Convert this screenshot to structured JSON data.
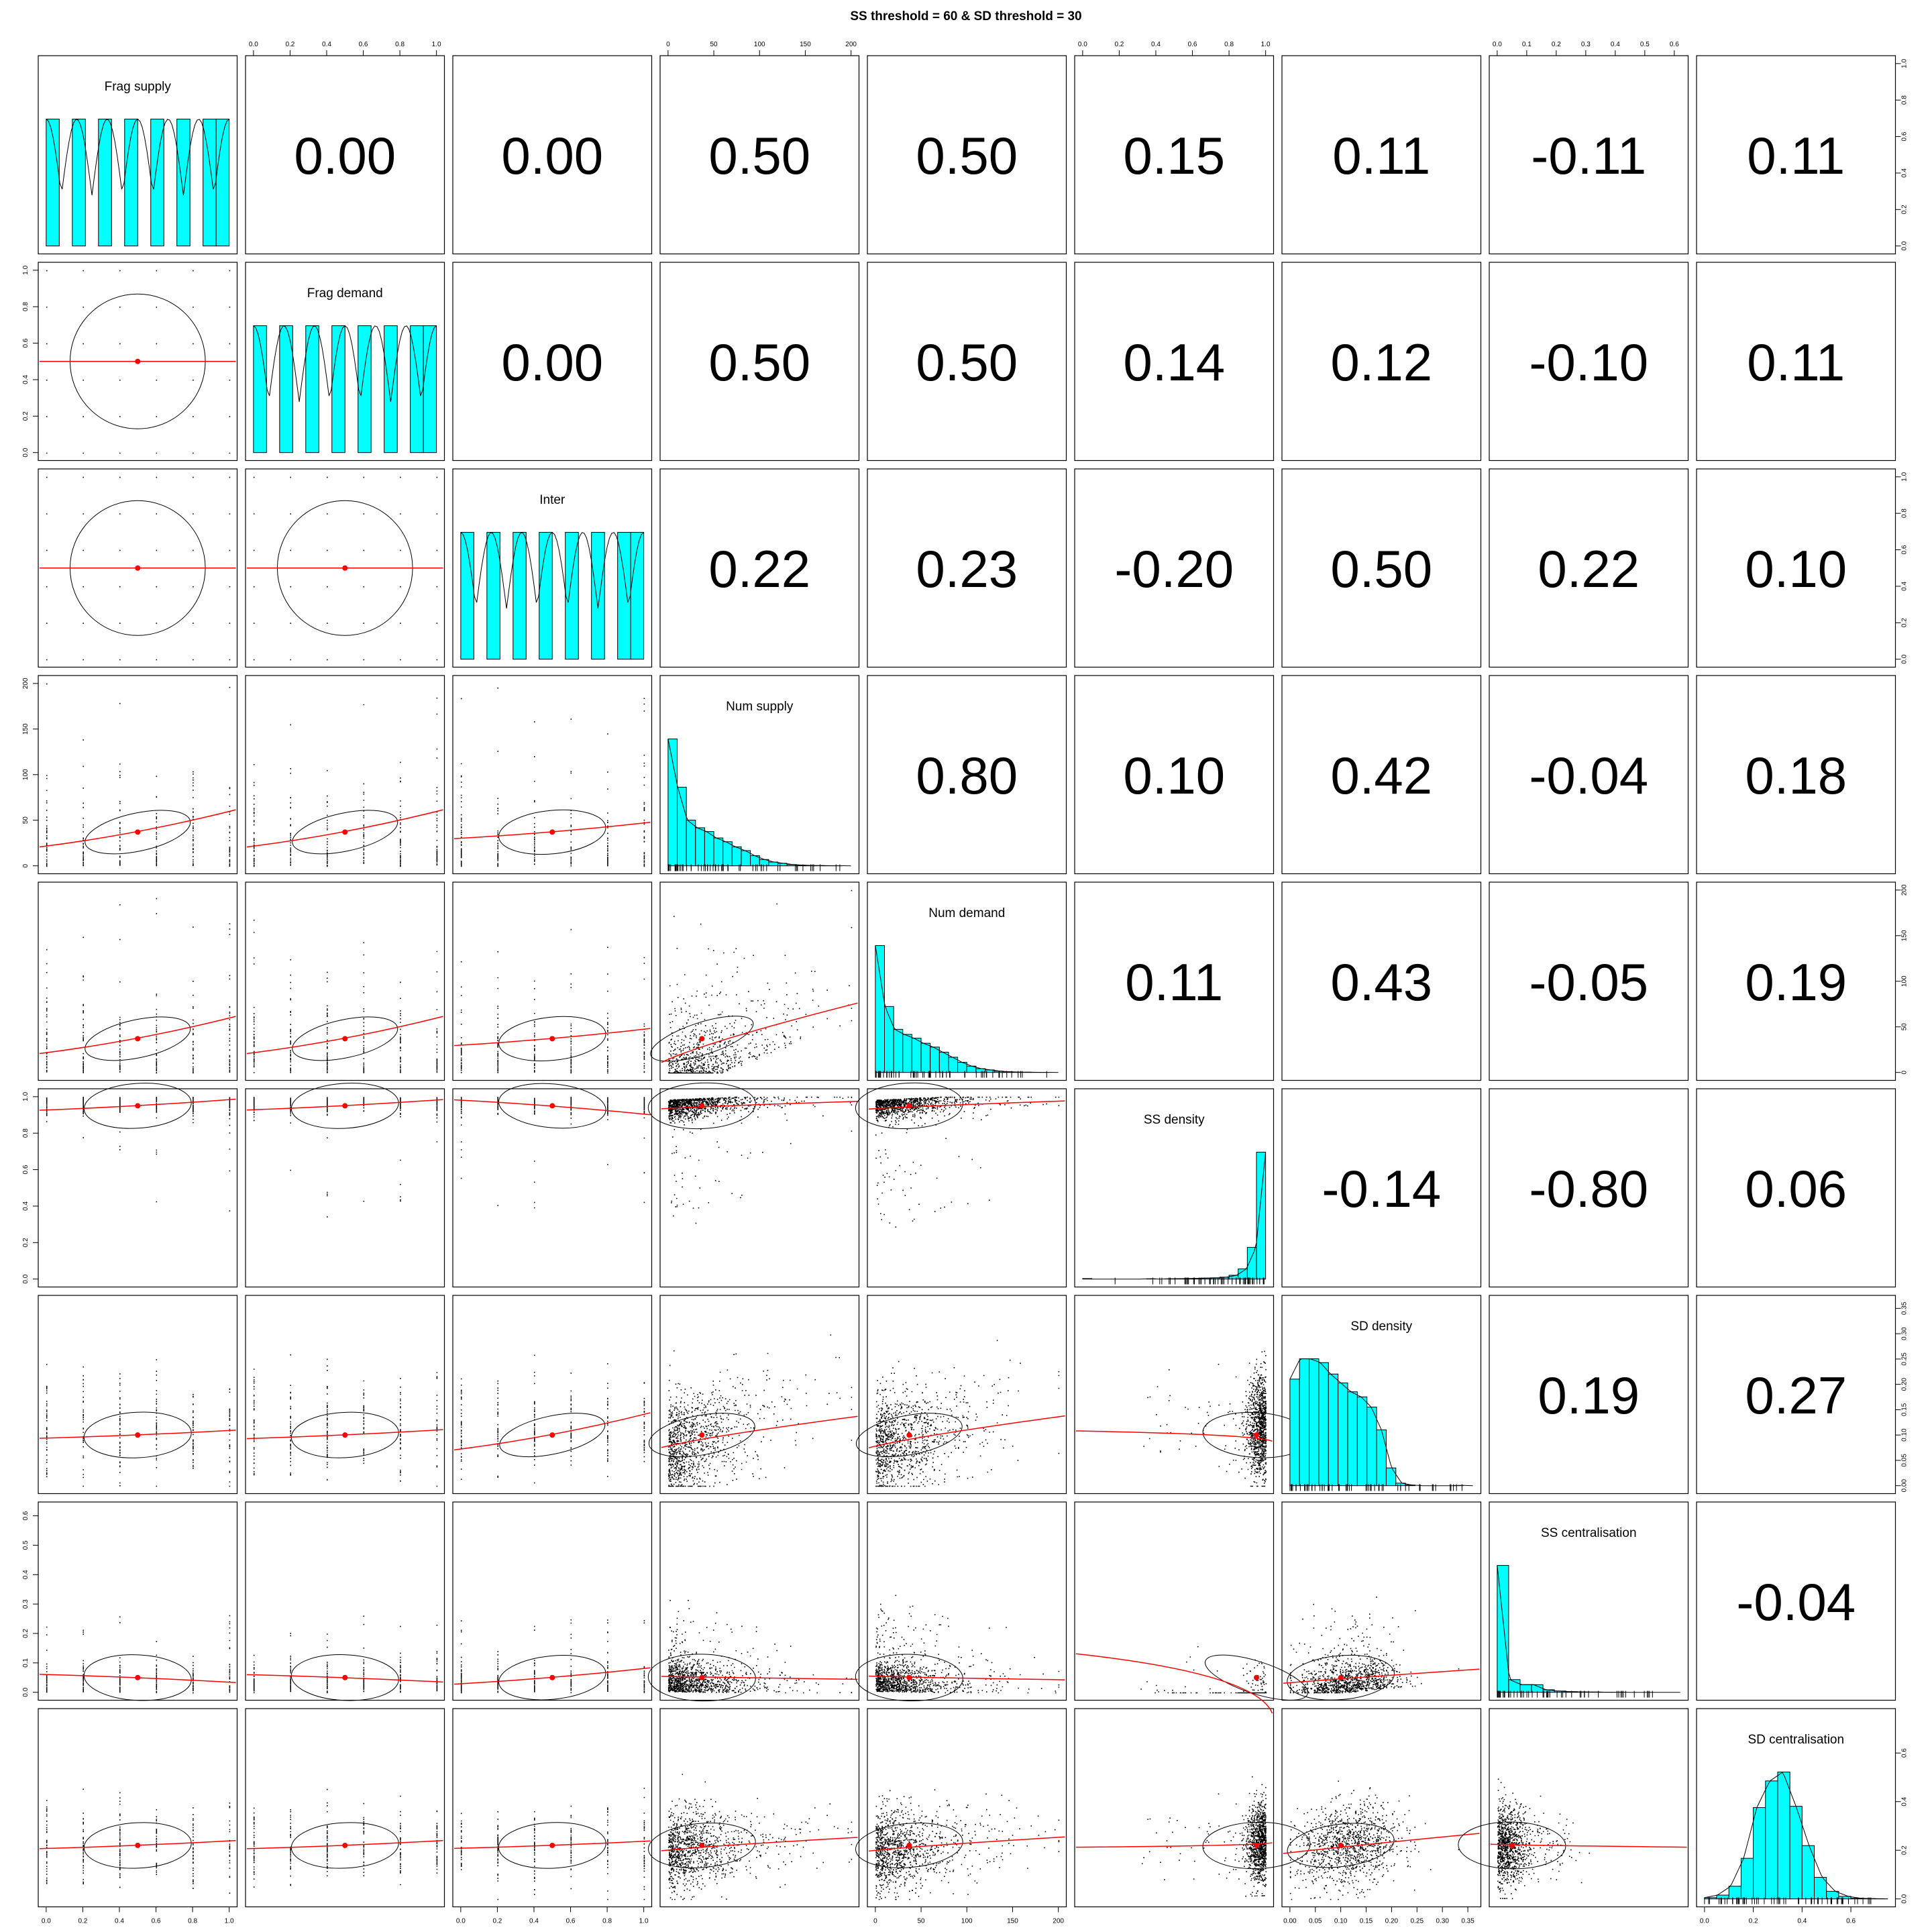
{
  "chart_data": {
    "type": "scatter-matrix",
    "title": "SS threshold = 60 & SD threshold = 30",
    "variables": [
      {
        "name": "Frag supply",
        "range": [
          0,
          1
        ],
        "ticks": [
          "0.0",
          "0.2",
          "0.4",
          "0.6",
          "0.8",
          "1.0"
        ],
        "tickvals": [
          0,
          0.2,
          0.4,
          0.6,
          0.8,
          1.0
        ],
        "mean": 0.5
      },
      {
        "name": "Frag demand",
        "range": [
          0,
          1
        ],
        "ticks": [
          "0.0",
          "0.2",
          "0.4",
          "0.6",
          "0.8",
          "1.0"
        ],
        "tickvals": [
          0,
          0.2,
          0.4,
          0.6,
          0.8,
          1.0
        ],
        "mean": 0.5
      },
      {
        "name": "Inter",
        "range": [
          0,
          1
        ],
        "ticks": [
          "0.0",
          "0.2",
          "0.4",
          "0.6",
          "0.8",
          "1.0"
        ],
        "tickvals": [
          0,
          0.2,
          0.4,
          0.6,
          0.8,
          1.0
        ],
        "mean": 0.5
      },
      {
        "name": "Num supply",
        "range": [
          0,
          200
        ],
        "ticks": [
          "0",
          "50",
          "100",
          "150",
          "200"
        ],
        "tickvals": [
          0,
          50,
          100,
          150,
          200
        ],
        "mean": 37
      },
      {
        "name": "Num demand",
        "range": [
          0,
          200
        ],
        "ticks": [
          "0",
          "50",
          "100",
          "150",
          "200"
        ],
        "tickvals": [
          0,
          50,
          100,
          150,
          200
        ],
        "mean": 37
      },
      {
        "name": "SS density",
        "range": [
          0,
          1
        ],
        "ticks": [
          "0.0",
          "0.2",
          "0.4",
          "0.6",
          "0.8",
          "1.0"
        ],
        "tickvals": [
          0,
          0.2,
          0.4,
          0.6,
          0.8,
          1.0
        ],
        "mean": 0.95
      },
      {
        "name": "SD density",
        "range": [
          0,
          0.36
        ],
        "ticks": [
          "0.00",
          "0.05",
          "0.10",
          "0.15",
          "0.20",
          "0.25",
          "0.30",
          "0.35"
        ],
        "tickvals": [
          0,
          0.05,
          0.1,
          0.15,
          0.2,
          0.25,
          0.3,
          0.35
        ],
        "mean": 0.1
      },
      {
        "name": "SS centralisation",
        "range": [
          0,
          0.62
        ],
        "ticks": [
          "0.0",
          "0.1",
          "0.2",
          "0.3",
          "0.4",
          "0.5",
          "0.6"
        ],
        "tickvals": [
          0,
          0.1,
          0.2,
          0.3,
          0.4,
          0.5,
          0.6
        ],
        "mean": 0.05
      },
      {
        "name": "SD centralisation",
        "range": [
          0,
          0.75
        ],
        "ticks": [
          "0.0",
          "0.2",
          "0.4",
          "0.6"
        ],
        "tickvals": [
          0,
          0.2,
          0.4,
          0.6
        ],
        "mean": 0.22
      }
    ],
    "correlations": [
      [
        "",
        "0.00",
        "0.00",
        "0.50",
        "0.50",
        "0.15",
        "0.11",
        "-0.11",
        "0.11"
      ],
      [
        "",
        "",
        "0.00",
        "0.50",
        "0.50",
        "0.14",
        "0.12",
        "-0.10",
        "0.11"
      ],
      [
        "",
        "",
        "",
        "0.22",
        "0.23",
        "-0.20",
        "0.50",
        "0.22",
        "0.10"
      ],
      [
        "",
        "",
        "",
        "",
        "0.80",
        "0.10",
        "0.42",
        "-0.04",
        "0.18"
      ],
      [
        "",
        "",
        "",
        "",
        "",
        "0.11",
        "0.43",
        "-0.05",
        "0.19"
      ],
      [
        "",
        "",
        "",
        "",
        "",
        "",
        "-0.14",
        "-0.80",
        "0.06"
      ],
      [
        "",
        "",
        "",
        "",
        "",
        "",
        "",
        "0.19",
        "0.27"
      ],
      [
        "",
        "",
        "",
        "",
        "",
        "",
        "",
        "",
        "-0.04"
      ],
      [
        "",
        "",
        "",
        "",
        "",
        "",
        "",
        "",
        ""
      ]
    ],
    "histograms": [
      {
        "bins": 14,
        "counts": [
          1,
          0,
          1,
          0,
          1,
          0,
          1,
          0,
          1,
          0,
          1,
          0,
          1,
          1
        ]
      },
      {
        "bins": 14,
        "counts": [
          1,
          0,
          1,
          0,
          1,
          0,
          1,
          0,
          1,
          0,
          1,
          0,
          1,
          1
        ]
      },
      {
        "bins": 14,
        "counts": [
          1,
          0,
          1,
          0,
          1,
          0,
          1,
          0,
          1,
          0,
          1,
          0,
          1,
          1
        ]
      },
      {
        "bins": 20,
        "counts": [
          1.0,
          0.62,
          0.36,
          0.3,
          0.27,
          0.22,
          0.19,
          0.15,
          0.12,
          0.08,
          0.05,
          0.03,
          0.02,
          0.01,
          0.005,
          0.003,
          0.002,
          0.001,
          0.001,
          0.0
        ]
      },
      {
        "bins": 20,
        "counts": [
          1.0,
          0.52,
          0.34,
          0.3,
          0.27,
          0.23,
          0.2,
          0.16,
          0.12,
          0.08,
          0.05,
          0.03,
          0.02,
          0.01,
          0.005,
          0.003,
          0.002,
          0.001,
          0.001,
          0.0
        ]
      },
      {
        "bins": 20,
        "counts": [
          0.004,
          0,
          0,
          0,
          0,
          0,
          0,
          0.002,
          0,
          0.002,
          0.003,
          0.004,
          0.005,
          0.008,
          0.01,
          0.015,
          0.03,
          0.08,
          0.25,
          1.0
        ]
      },
      {
        "bins": 19,
        "counts": [
          0.84,
          1.0,
          1.0,
          0.97,
          0.88,
          0.81,
          0.74,
          0.7,
          0.62,
          0.44,
          0.14,
          0.02,
          0.005,
          0,
          0,
          0,
          0,
          0.002,
          0
        ]
      },
      {
        "bins": 16,
        "counts": [
          1.0,
          0.1,
          0.06,
          0.06,
          0.02,
          0.01,
          0.005,
          0.003,
          0.002,
          0.001,
          0.001,
          0,
          0,
          0,
          0,
          0
        ]
      },
      {
        "bins": 15,
        "counts": [
          0.01,
          0.03,
          0.1,
          0.32,
          0.72,
          0.93,
          1.0,
          0.73,
          0.42,
          0.17,
          0.06,
          0.02,
          0.005,
          0.002,
          0.001
        ]
      }
    ]
  }
}
